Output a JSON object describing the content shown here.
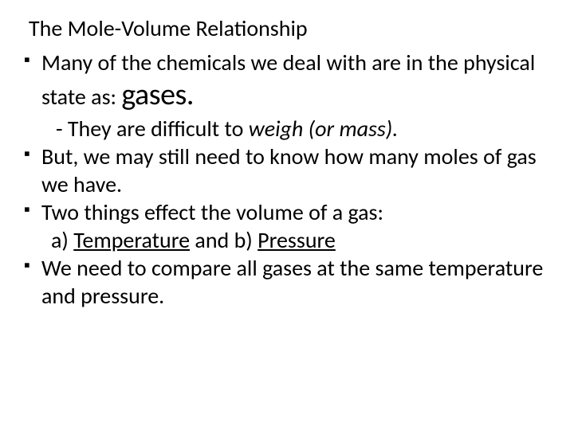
{
  "title": "The Mole-Volume Relationship",
  "bullets": {
    "b1_part1": "Many of the chemicals we deal with are in the physical state as: ",
    "b1_big": "gases.",
    "sub1_prefix": "- They are difficult to ",
    "sub1_italic": "weigh (or mass).",
    "b2": "But, we may still need to know how many moles of gas we have.",
    "b3": "Two things effect the volume of a gas:",
    "sub2_a_prefix": "a) ",
    "sub2_a_word": "Temperature",
    "sub2_mid": " and b) ",
    "sub2_b_word": "Pressure",
    "b4": "We need to compare all gases at the same temperature and pressure."
  },
  "styling": {
    "background_color": "#ffffff",
    "text_color": "#000000",
    "title_fontsize": 28,
    "body_fontsize": 28,
    "big_word_fontsize": 38,
    "font_family": "Calibri"
  }
}
